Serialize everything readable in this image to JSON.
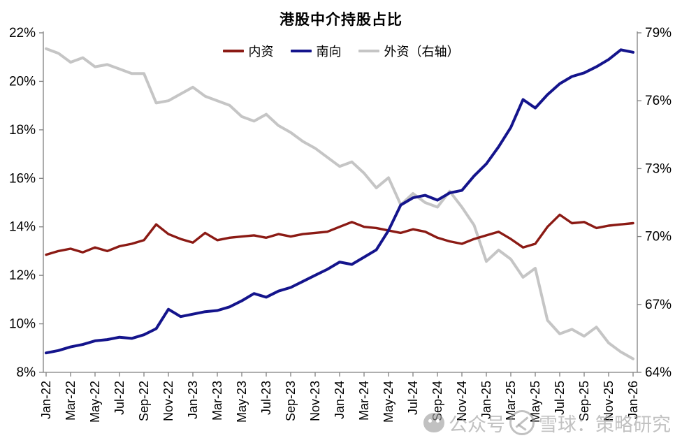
{
  "title": "港股中介持股占比",
  "legend": [
    {
      "label": "内资",
      "color": "#8B1A14"
    },
    {
      "label": "南向",
      "color": "#14148C"
    },
    {
      "label": "外资（右轴）",
      "color": "#C5C5C5"
    }
  ],
  "watermark": {
    "part1": "公众号",
    "part2": "雪球：策略研究"
  },
  "colors": {
    "axis": "#7F7F7F",
    "text": "#000000",
    "background": "#FFFFFF",
    "domestic": "#8B1A14",
    "southbound": "#14148C",
    "foreign": "#C5C5C5"
  },
  "chart_data": {
    "type": "line",
    "title": "港股中介持股占比",
    "x": [
      "Jan-22",
      "Feb-22",
      "Mar-22",
      "Apr-22",
      "May-22",
      "Jun-22",
      "Jul-22",
      "Aug-22",
      "Sep-22",
      "Oct-22",
      "Nov-22",
      "Dec-22",
      "Jan-23",
      "Feb-23",
      "Mar-23",
      "Apr-23",
      "May-23",
      "Jun-23",
      "Jul-23",
      "Aug-23",
      "Sep-23",
      "Oct-23",
      "Nov-23",
      "Dec-23",
      "Jan-24",
      "Feb-24",
      "Mar-24",
      "Apr-24",
      "May-24",
      "Jun-24",
      "Jul-24",
      "Aug-24",
      "Sep-24",
      "Oct-24",
      "Nov-24",
      "Dec-24",
      "Jan-25",
      "Feb-25",
      "Mar-25",
      "Apr-25",
      "May-25",
      "Jun-25",
      "Jul-25",
      "Aug-25",
      "Sep-25",
      "Oct-25",
      "Nov-25",
      "Dec-25",
      "Jan-26"
    ],
    "x_tick_labels": [
      "Jan-22",
      "Mar-22",
      "May-22",
      "Jul-22",
      "Sep-22",
      "Nov-22",
      "Jan-23",
      "Mar-23",
      "May-23",
      "Jul-23",
      "Sep-23",
      "Nov-23",
      "Jan-24",
      "Mar-24",
      "May-24",
      "Jul-24",
      "Sep-24",
      "Nov-24",
      "Jan-25",
      "Mar-25",
      "May-25",
      "Jul-25",
      "Sep-25",
      "Nov-25",
      "Jan-26"
    ],
    "left_axis": {
      "min": 8,
      "max": 22,
      "step": 2,
      "tick_labels": [
        "22%",
        "20%",
        "18%",
        "16%",
        "14%",
        "12%",
        "10%",
        "8%"
      ]
    },
    "right_axis": {
      "min": 64,
      "max": 79,
      "step": 3,
      "tick_labels": [
        "79%",
        "76%",
        "73%",
        "70%",
        "67%",
        "64%"
      ]
    },
    "grid": false,
    "legend_position": "top",
    "series": [
      {
        "name": "内资",
        "axis": "left",
        "color": "#8B1A14",
        "width": 3.4,
        "values": [
          12.85,
          13.0,
          13.1,
          12.95,
          13.15,
          13.0,
          13.2,
          13.3,
          13.45,
          14.1,
          13.7,
          13.5,
          13.35,
          13.75,
          13.45,
          13.55,
          13.6,
          13.65,
          13.55,
          13.7,
          13.6,
          13.7,
          13.75,
          13.8,
          14.0,
          14.2,
          14.0,
          13.95,
          13.85,
          13.75,
          13.9,
          13.8,
          13.55,
          13.4,
          13.3,
          13.5,
          13.65,
          13.8,
          13.5,
          13.15,
          13.3,
          14.0,
          14.5,
          14.15,
          14.2,
          13.95,
          14.05,
          14.1,
          14.15
        ]
      },
      {
        "name": "南向",
        "axis": "left",
        "color": "#14148C",
        "width": 4,
        "values": [
          8.8,
          8.9,
          9.05,
          9.15,
          9.3,
          9.35,
          9.45,
          9.4,
          9.55,
          9.8,
          10.6,
          10.3,
          10.4,
          10.5,
          10.55,
          10.7,
          10.95,
          11.25,
          11.1,
          11.35,
          11.5,
          11.75,
          12.0,
          12.25,
          12.55,
          12.45,
          12.75,
          13.05,
          13.85,
          14.9,
          15.2,
          15.3,
          15.1,
          15.4,
          15.5,
          16.1,
          16.6,
          17.3,
          18.1,
          19.25,
          18.9,
          19.45,
          19.9,
          20.2,
          20.35,
          20.6,
          20.9,
          21.3,
          21.2
        ]
      },
      {
        "name": "外资（右轴）",
        "axis": "right",
        "color": "#C5C5C5",
        "width": 4,
        "values": [
          78.3,
          78.1,
          77.7,
          77.9,
          77.5,
          77.6,
          77.4,
          77.2,
          77.2,
          75.9,
          76.0,
          76.3,
          76.6,
          76.2,
          76.0,
          75.8,
          75.3,
          75.1,
          75.4,
          74.9,
          74.6,
          74.2,
          73.9,
          73.5,
          73.1,
          73.3,
          72.8,
          72.15,
          72.6,
          71.4,
          71.9,
          71.5,
          71.3,
          72.0,
          71.3,
          70.5,
          68.9,
          69.4,
          69.0,
          68.2,
          68.6,
          66.3,
          65.7,
          65.9,
          65.6,
          66.0,
          65.3,
          64.9,
          64.6
        ]
      }
    ]
  }
}
